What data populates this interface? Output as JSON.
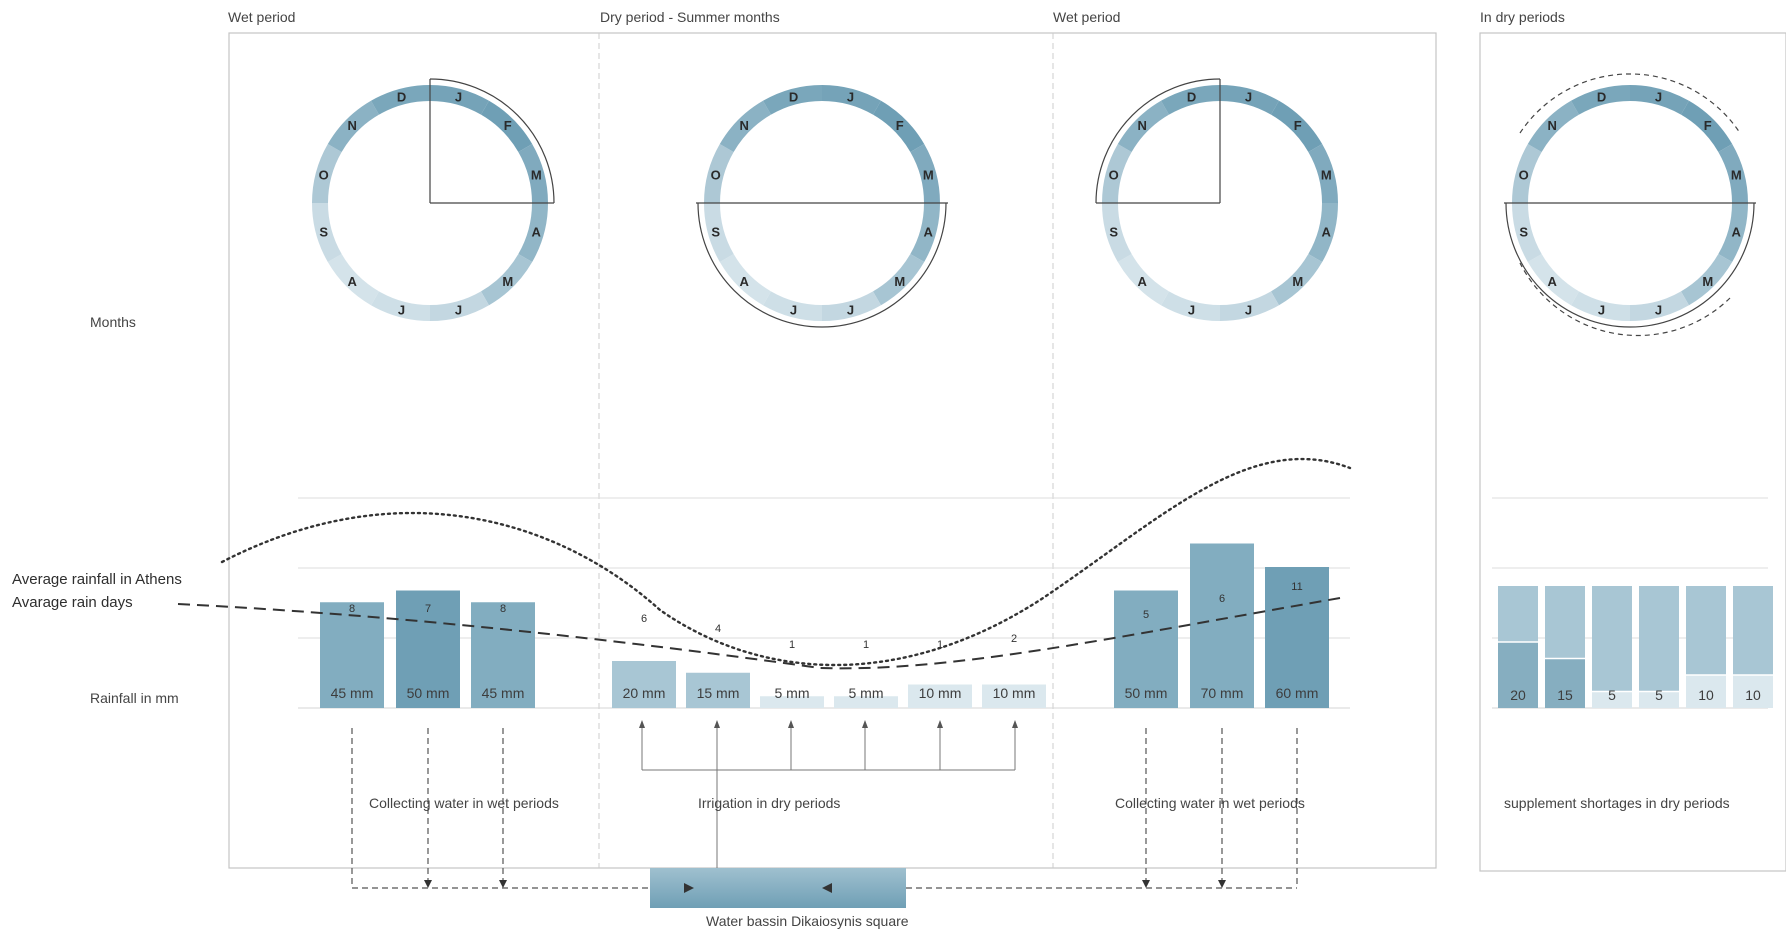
{
  "headers": {
    "wet1": "Wet period",
    "dry": "Dry period - Summer months",
    "wet2": "Wet period",
    "extra": "In dry periods"
  },
  "row_labels": {
    "months": "Months",
    "avg_rainfall": "Average rainfall in Athens",
    "avg_rain_days": "Avarage rain days",
    "rainfall_mm": "Rainfall in mm"
  },
  "month_letters": [
    "J",
    "F",
    "M",
    "A",
    "M",
    "J",
    "J",
    "A",
    "S",
    "O",
    "N",
    "D"
  ],
  "wheel_highlight_periods": [
    "wet",
    "dry",
    "wet",
    "dry"
  ],
  "bars": [
    {
      "label": "45 mm",
      "value": 45,
      "days": "8",
      "period": "wet1"
    },
    {
      "label": "50 mm",
      "value": 50,
      "days": "7",
      "period": "wet1"
    },
    {
      "label": "45 mm",
      "value": 45,
      "days": "8",
      "period": "wet1"
    },
    {
      "label": "20 mm",
      "value": 20,
      "days": "6",
      "period": "dry"
    },
    {
      "label": "15 mm",
      "value": 15,
      "days": "4",
      "period": "dry"
    },
    {
      "label": "5 mm",
      "value": 5,
      "days": "1",
      "period": "dry"
    },
    {
      "label": "5 mm",
      "value": 5,
      "days": "1",
      "period": "dry"
    },
    {
      "label": "10 mm",
      "value": 10,
      "days": "1",
      "period": "dry"
    },
    {
      "label": "10 mm",
      "value": 10,
      "days": "2",
      "period": "dry"
    },
    {
      "label": "50 mm",
      "value": 50,
      "days": "5",
      "period": "wet2"
    },
    {
      "label": "70 mm",
      "value": 70,
      "days": "6",
      "period": "wet2"
    },
    {
      "label": "60 mm",
      "value": 60,
      "days": "11",
      "period": "wet2"
    }
  ],
  "supplement_bars": [
    {
      "label": "20",
      "value": 20
    },
    {
      "label": "15",
      "value": 15
    },
    {
      "label": "5",
      "value": 5
    },
    {
      "label": "5",
      "value": 5
    },
    {
      "label": "10",
      "value": 10
    },
    {
      "label": "10",
      "value": 10
    }
  ],
  "flow_labels": {
    "collect1": "Collecting water in wet periods",
    "irrigation": "Irrigation in dry periods",
    "collect2": "Collecting water in wet periods",
    "supplement": "supplement shortages in dry periods"
  },
  "basin_label": "Water bassin Dikaiosynis square",
  "colors": {
    "bar_dark": "#6f9fb5",
    "bar_mid": "#a8c6d4",
    "bar_light": "#dbe8ee",
    "ring_dark": "#6f9fb5",
    "ring_light": "#dfeaf0",
    "frame": "#bbbbbb",
    "guide": "#d0d0d0"
  }
}
